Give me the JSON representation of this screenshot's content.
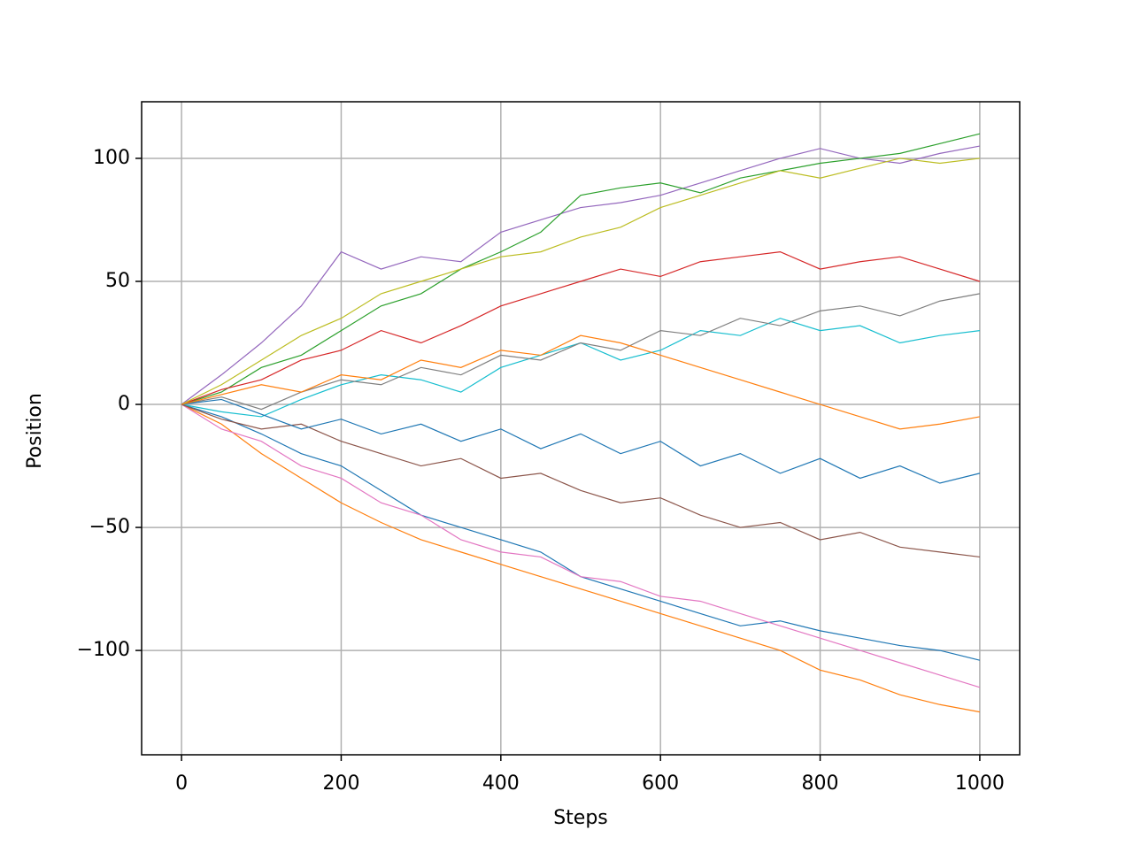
{
  "chart_data": {
    "type": "line",
    "x_label": "Steps",
    "y_label": "Position",
    "x": [
      0,
      50,
      100,
      150,
      200,
      250,
      300,
      350,
      400,
      450,
      500,
      550,
      600,
      650,
      700,
      750,
      800,
      850,
      900,
      950,
      1000
    ],
    "series": [
      {
        "color": "#9467bd",
        "values": [
          0,
          12,
          25,
          40,
          62,
          55,
          60,
          58,
          70,
          75,
          80,
          82,
          85,
          90,
          95,
          100,
          104,
          100,
          98,
          102,
          105
        ]
      },
      {
        "color": "#ff7f0e",
        "values": [
          0,
          -8,
          -20,
          -30,
          -40,
          -48,
          -55,
          -60,
          -65,
          -70,
          -75,
          -80,
          -85,
          -90,
          -95,
          -100,
          -108,
          -112,
          -118,
          -122,
          -125
        ]
      },
      {
        "color": "#2ca02c",
        "values": [
          0,
          5,
          15,
          20,
          30,
          40,
          45,
          55,
          62,
          70,
          85,
          88,
          90,
          86,
          92,
          95,
          98,
          100,
          102,
          106,
          110
        ]
      },
      {
        "color": "#1f77b4",
        "values": [
          0,
          -5,
          -12,
          -20,
          -25,
          -35,
          -45,
          -50,
          -55,
          -60,
          -70,
          -75,
          -80,
          -85,
          -90,
          -88,
          -92,
          -95,
          -98,
          -100,
          -104
        ]
      },
      {
        "color": "#d62728",
        "values": [
          0,
          6,
          10,
          18,
          22,
          30,
          25,
          32,
          40,
          45,
          50,
          55,
          52,
          58,
          60,
          62,
          55,
          58,
          60,
          55,
          50
        ]
      },
      {
        "color": "#17becf",
        "values": [
          0,
          -3,
          -5,
          2,
          8,
          12,
          10,
          5,
          15,
          20,
          25,
          18,
          22,
          30,
          28,
          35,
          30,
          32,
          25,
          28,
          30
        ]
      },
      {
        "color": "#e377c2",
        "values": [
          0,
          -10,
          -15,
          -25,
          -30,
          -40,
          -45,
          -55,
          -60,
          -62,
          -70,
          -72,
          -78,
          -80,
          -85,
          -90,
          -95,
          -100,
          -105,
          -110,
          -115
        ]
      },
      {
        "color": "#bcbd22",
        "values": [
          0,
          8,
          18,
          28,
          35,
          45,
          50,
          55,
          60,
          62,
          68,
          72,
          80,
          85,
          90,
          95,
          92,
          96,
          100,
          98,
          100
        ]
      },
      {
        "color": "#8c564b",
        "values": [
          0,
          -6,
          -10,
          -8,
          -15,
          -20,
          -25,
          -22,
          -30,
          -28,
          -35,
          -40,
          -38,
          -45,
          -50,
          -48,
          -55,
          -52,
          -58,
          -60,
          -62
        ]
      },
      {
        "color": "#7f7f7f",
        "values": [
          0,
          3,
          -2,
          5,
          10,
          8,
          15,
          12,
          20,
          18,
          25,
          22,
          30,
          28,
          35,
          32,
          38,
          40,
          36,
          42,
          45
        ]
      },
      {
        "color": "#1f77b4",
        "values": [
          0,
          2,
          -4,
          -10,
          -6,
          -12,
          -8,
          -15,
          -10,
          -18,
          -12,
          -20,
          -15,
          -25,
          -20,
          -28,
          -22,
          -30,
          -25,
          -32,
          -28
        ]
      },
      {
        "color": "#ff7f0e",
        "values": [
          0,
          4,
          8,
          5,
          12,
          10,
          18,
          15,
          22,
          20,
          28,
          25,
          20,
          15,
          10,
          5,
          0,
          -5,
          -10,
          -8,
          -5
        ]
      }
    ],
    "xlim": [
      -50,
      1050
    ],
    "ylim": [
      -142.4,
      123
    ],
    "xticks": [
      0,
      200,
      400,
      600,
      800,
      1000
    ],
    "yticks": [
      {
        "value": -100,
        "label": "−100"
      },
      {
        "value": -50,
        "label": "−50"
      },
      0,
      50,
      100
    ],
    "grid": true
  }
}
